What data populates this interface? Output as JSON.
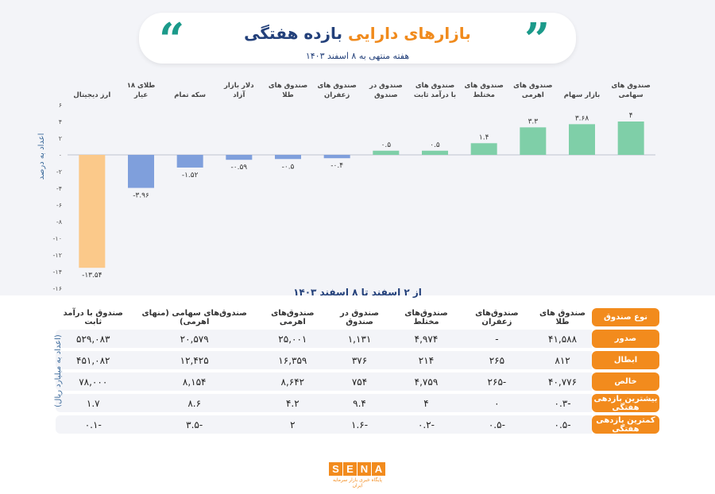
{
  "header": {
    "title_part1": "بازده هفتگی",
    "title_part2": "بازارهای دارایی",
    "subtitle": "هفته منتهی به ۸ اسفند ۱۴۰۳"
  },
  "colors": {
    "positive": "#7fcfa8",
    "negative": "#7f9fdc",
    "crypto": "#fbc98a",
    "header_orange": "#f28b1d",
    "title_blue": "#23407a",
    "quote_teal": "#1b9a8a"
  },
  "chart_data": {
    "type": "bar",
    "categories": [
      "صندوق های سهامی",
      "بازار سهام",
      "صندوق های اهرمی",
      "صندوق های مختلط",
      "صندوق های با درآمد ثابت",
      "صندوق در صندوق",
      "صندوق های زعفران",
      "صندوق های طلا",
      "دلار بازار آزاد",
      "سکه تمام",
      "طلای ۱۸ عیار",
      "ارز دیجیتال"
    ],
    "values": [
      4,
      3.68,
      3.3,
      1.4,
      0.5,
      0.5,
      -0.4,
      -0.5,
      -0.59,
      -1.52,
      -3.96,
      -13.54
    ],
    "value_labels": [
      "۴",
      "۳.۶۸",
      "۳.۳",
      "۱.۴",
      "۰.۵",
      "۰.۵",
      "-۰.۴",
      "-۰.۵",
      "-۰.۵۹",
      "-۱.۵۲",
      "-۳.۹۶",
      "-۱۳.۵۴"
    ],
    "ylim": [
      -16,
      6
    ],
    "yticks": [
      6,
      4,
      2,
      0,
      -2,
      -4,
      -6,
      -8,
      -10,
      -12,
      -14,
      -16
    ],
    "ytick_labels": [
      "۶",
      "۴",
      "۲",
      "۰",
      "-۲",
      "-۴",
      "-۶",
      "-۸",
      "-۱۰",
      "-۱۲",
      "-۱۴",
      "-۱۶"
    ],
    "ylabel": "اعداد به درصد",
    "xnote": "از ۲ اسفند تا ۸ اسفند ۱۴۰۳",
    "title": "بازده هفتگی بازارهای دارایی"
  },
  "table": {
    "corner_label": "نوع صندوق",
    "axis_label": "(اعداد به میلیارد ریال)",
    "columns": [
      "صندوق های طلا",
      "صندوق‌های زعفران",
      "صندوق‌های مختلط",
      "صندوق در صندوق",
      "صندوق‌های اهرمی",
      "صندوق‌های سهامی (منهای اهرمی)",
      "صندوق با درآمد ثابت"
    ],
    "rows": [
      {
        "label": "صدور",
        "values": [
          "۴۱,۵۸۸",
          "-",
          "۴,۹۷۴",
          "۱,۱۳۱",
          "۲۵,۰۰۱",
          "۲۰,۵۷۹",
          "۵۲۹,۰۸۳"
        ]
      },
      {
        "label": "ابطال",
        "values": [
          "۸۱۲",
          "۲۶۵",
          "۲۱۴",
          "۳۷۶",
          "۱۶,۳۵۹",
          "۱۲,۴۲۵",
          "۴۵۱,۰۸۲"
        ]
      },
      {
        "label": "خالص",
        "values": [
          "۴۰,۷۷۶",
          "-۲۶۵",
          "۴,۷۵۹",
          "۷۵۴",
          "۸,۶۴۲",
          "۸,۱۵۴",
          "۷۸,۰۰۰"
        ]
      },
      {
        "label": "بیشترین بازدهی هفتگی",
        "values": [
          "-۰.۳",
          "۰",
          "۴",
          "۹.۴",
          "۴.۲",
          "۸.۶",
          "۱.۷"
        ]
      },
      {
        "label": "کمترین بازدهی هفتگی",
        "values": [
          "-۰.۵",
          "-۰.۵",
          "-۰.۲",
          "-۱.۶",
          "۲",
          "-۳.۵",
          "-۰.۱"
        ]
      }
    ]
  },
  "logo": {
    "letters": [
      "S",
      "E",
      "N",
      "A"
    ],
    "tagline": "پایگاه خبری بازار سرمایه ایران"
  }
}
